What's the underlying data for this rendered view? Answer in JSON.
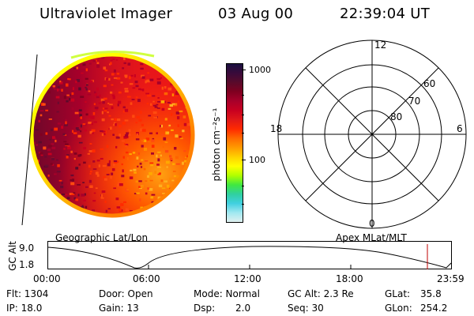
{
  "header": {
    "title": "Ultraviolet Imager",
    "date": "03 Aug 00",
    "time": "22:39:04 UT"
  },
  "colorbar": {
    "unit_label": "photon cm⁻²s⁻¹",
    "ticks": [
      "1000",
      "100"
    ],
    "colors": [
      "#1a1040",
      "#3a0a3a",
      "#5a0a2a",
      "#800020",
      "#a8002a",
      "#c80020",
      "#e01818",
      "#ff2a00",
      "#ff6a00",
      "#ff9a00",
      "#ffd000",
      "#ffff00",
      "#b0ff00",
      "#40e840",
      "#30d0a0",
      "#40d0e0",
      "#a0e8f0",
      "#e0f0f0"
    ]
  },
  "polar": {
    "mlt_labels": [
      "12",
      "18",
      "6",
      "0"
    ],
    "lat_labels": [
      "60",
      "70",
      "80"
    ]
  },
  "timeline": {
    "left_label": "Geographic Lat/Lon",
    "right_label": "Apex MLat/MLT",
    "axis_label": "GC Alt",
    "ymax": "9.0",
    "ymin": "1.8",
    "xticks": [
      "00:00",
      "06:00",
      "12:00",
      "18:00",
      "23:59"
    ]
  },
  "info": {
    "flt": "Flt: 1304",
    "ip": "IP: 18.0",
    "door": "Door: Open",
    "gain": "Gain: 13",
    "mode": "Mode: Normal",
    "dsp_label": "Dsp:",
    "dsp_value": "2.0",
    "gcalt": "GC Alt: 2.3 Re",
    "seq": "Seq: 30",
    "glat_label": "GLat:",
    "glat_value": "35.8",
    "glon_label": "GLon:",
    "glon_value": "254.2"
  }
}
